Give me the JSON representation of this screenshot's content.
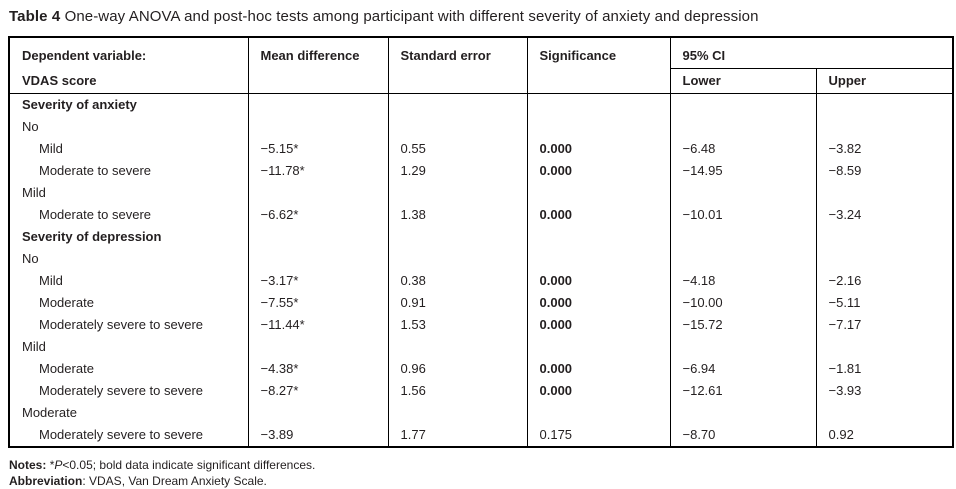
{
  "title": {
    "label": "Table 4",
    "text": "One-way ANOVA and post-hoc tests among participant with different severity of anxiety and depression"
  },
  "table": {
    "header": {
      "dependent_variable_line1": "Dependent variable:",
      "dependent_variable_line2": "VDAS score",
      "mean_difference": "Mean difference",
      "standard_error": "Standard error",
      "significance": "Significance",
      "ci": "95% CI",
      "ci_lower": "Lower",
      "ci_upper": "Upper"
    },
    "rows": [
      {
        "type": "section",
        "label": "Severity of anxiety"
      },
      {
        "type": "group",
        "label": "No"
      },
      {
        "type": "item",
        "label": "Mild",
        "mean_diff": "−5.15*",
        "se": "0.55",
        "sig": "0.000",
        "sig_bold": true,
        "lower": "−6.48",
        "upper": "−3.82"
      },
      {
        "type": "item",
        "label": "Moderate to severe",
        "mean_diff": "−11.78*",
        "se": "1.29",
        "sig": "0.000",
        "sig_bold": true,
        "lower": "−14.95",
        "upper": "−8.59"
      },
      {
        "type": "group",
        "label": "Mild"
      },
      {
        "type": "item",
        "label": "Moderate to severe",
        "mean_diff": "−6.62*",
        "se": "1.38",
        "sig": "0.000",
        "sig_bold": true,
        "lower": "−10.01",
        "upper": "−3.24"
      },
      {
        "type": "section",
        "label": "Severity of depression"
      },
      {
        "type": "group",
        "label": "No"
      },
      {
        "type": "item",
        "label": "Mild",
        "mean_diff": "−3.17*",
        "se": "0.38",
        "sig": "0.000",
        "sig_bold": true,
        "lower": "−4.18",
        "upper": "−2.16"
      },
      {
        "type": "item",
        "label": "Moderate",
        "mean_diff": "−7.55*",
        "se": "0.91",
        "sig": "0.000",
        "sig_bold": true,
        "lower": "−10.00",
        "upper": "−5.11"
      },
      {
        "type": "item",
        "label": "Moderately severe to severe",
        "mean_diff": "−11.44*",
        "se": "1.53",
        "sig": "0.000",
        "sig_bold": true,
        "lower": "−15.72",
        "upper": "−7.17"
      },
      {
        "type": "group",
        "label": "Mild"
      },
      {
        "type": "item",
        "label": "Moderate",
        "mean_diff": "−4.38*",
        "se": "0.96",
        "sig": "0.000",
        "sig_bold": true,
        "lower": "−6.94",
        "upper": "−1.81"
      },
      {
        "type": "item",
        "label": "Moderately severe to severe",
        "mean_diff": "−8.27*",
        "se": "1.56",
        "sig": "0.000",
        "sig_bold": true,
        "lower": "−12.61",
        "upper": "−3.93"
      },
      {
        "type": "group",
        "label": "Moderate"
      },
      {
        "type": "item",
        "label": "Moderately severe to severe",
        "mean_diff": "−3.89",
        "se": "1.77",
        "sig": "0.175",
        "sig_bold": false,
        "lower": "−8.70",
        "upper": "0.92"
      }
    ]
  },
  "notes": {
    "label": "Notes:",
    "asterisk": "*",
    "p_italic": "P",
    "rest": "<0.05; bold data indicate significant differences.",
    "abbr_label": "Abbreviation",
    "abbr_rest": ": VDAS, Van Dream Anxiety Scale."
  }
}
